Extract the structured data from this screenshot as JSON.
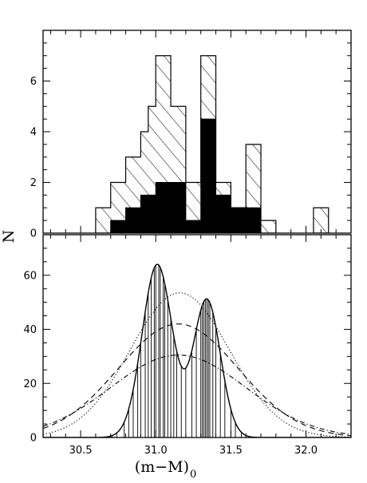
{
  "chart_data": [
    {
      "type": "histogram",
      "panel": "top",
      "ylabel": "N",
      "xlim": [
        30.25,
        32.3
      ],
      "ylim": [
        0,
        8
      ],
      "yticks": [
        "0",
        "2",
        "4",
        "6"
      ],
      "bin_edges": [
        30.6,
        30.65,
        30.7,
        30.75,
        30.8,
        30.85,
        30.9,
        30.95,
        31.0,
        31.05,
        31.1,
        31.15,
        31.2,
        31.25,
        31.3,
        31.35,
        31.4,
        31.45,
        31.5,
        31.55,
        31.6,
        31.65,
        31.7,
        31.75,
        31.8,
        31.85,
        31.9,
        31.95,
        32.0,
        32.05,
        32.1,
        32.15
      ],
      "series": [
        {
          "style": "outline-hatched",
          "values": [
            1,
            1,
            2,
            2,
            3,
            3,
            4,
            5,
            7,
            7,
            5,
            5,
            2,
            2,
            7,
            7,
            2,
            2,
            1,
            1,
            3.5,
            3.5,
            0.5,
            0.5,
            0,
            0,
            0,
            0,
            0,
            1,
            1
          ]
        },
        {
          "style": "filled-black",
          "values": [
            0,
            0,
            0.5,
            0.5,
            1,
            1,
            1.5,
            1.5,
            2,
            2,
            2,
            2,
            0.5,
            0.5,
            4.5,
            4.5,
            1.5,
            1.5,
            1,
            1,
            1,
            1,
            0,
            0,
            0,
            0,
            0,
            0,
            0,
            0,
            0
          ]
        }
      ]
    },
    {
      "type": "line",
      "panel": "bottom",
      "xlabel": "(m−M)",
      "xlabel_subscript": "0",
      "xlim": [
        30.25,
        32.3
      ],
      "ylim": [
        0,
        75
      ],
      "xticks": [
        "30.5",
        "31.0",
        "31.5",
        "32.0"
      ],
      "yticks": [
        "0",
        "20",
        "40",
        "60"
      ],
      "series": [
        {
          "style": "solid",
          "kind": "two-peak",
          "peaks": [
            {
              "mu": 31.01,
              "sigma": 0.1,
              "amp": 64.0
            },
            {
              "mu": 31.34,
              "sigma": 0.09,
              "amp": 51.0
            }
          ]
        },
        {
          "style": "dotted",
          "kind": "gaussian",
          "mu": 31.16,
          "sigma": 0.33,
          "amp": 53.5
        },
        {
          "style": "dashed",
          "kind": "gaussian",
          "mu": 31.15,
          "sigma": 0.4,
          "amp": 42.0
        },
        {
          "style": "dash-dot",
          "kind": "gaussian",
          "mu": 31.15,
          "sigma": 0.45,
          "amp": 30.5
        }
      ],
      "individual_measurements": [
        30.64,
        30.71,
        30.74,
        30.79,
        30.82,
        30.85,
        30.88,
        30.9,
        30.93,
        30.95,
        30.97,
        30.99,
        31.0,
        31.02,
        31.03,
        31.05,
        31.06,
        31.08,
        31.1,
        31.12,
        31.14,
        31.17,
        31.2,
        31.24,
        31.27,
        31.3,
        31.31,
        31.32,
        31.33,
        31.34,
        31.35,
        31.36,
        31.38,
        31.4,
        31.43,
        31.46,
        31.5,
        31.53,
        31.57,
        31.62,
        31.66,
        31.72,
        32.11
      ]
    }
  ]
}
